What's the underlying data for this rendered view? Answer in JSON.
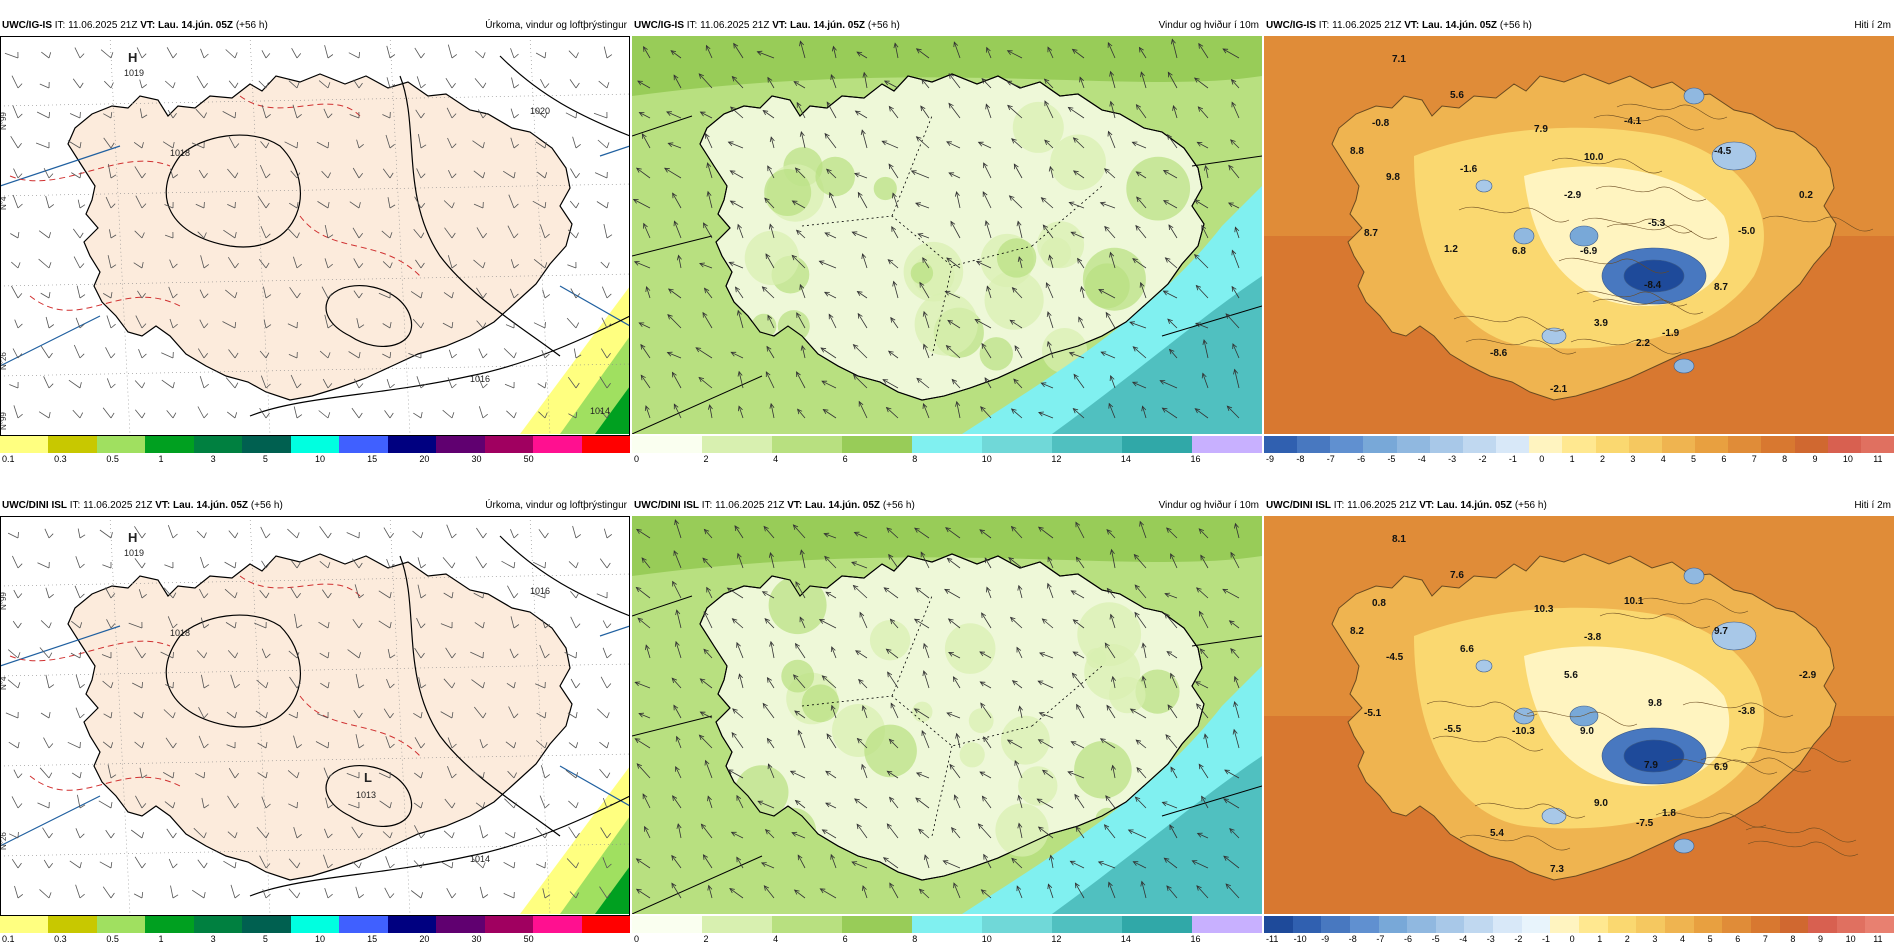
{
  "panels": [
    {
      "model": "UWC/IG-IS",
      "it_label": "IT:",
      "it_value": "11.06.2025 21Z",
      "vt_label": "VT:",
      "vt_value": "Lau. 14.jún. 05Z",
      "lead": "(+56 h)",
      "title": "Úrkoma, vindur og loftþrýstingur",
      "type": "precip",
      "colorbar": [
        "#ffff80",
        "#c8c800",
        "#a0e060",
        "#00a020",
        "#008040",
        "#006050",
        "#00ffe0",
        "#4060ff",
        "#000080",
        "#600070",
        "#a00060",
        "#ff1090",
        "#ff0000"
      ],
      "ticks": [
        "0.1",
        "0.3",
        "0.5",
        "1",
        "3",
        "5",
        "10",
        "15",
        "20",
        "30",
        "50"
      ],
      "labels": [
        {
          "t": "H",
          "type": "pressure-center"
        },
        {
          "t": "1019",
          "type": "isobar-label"
        },
        {
          "t": "1018",
          "type": "isobar-label"
        },
        {
          "t": "1020",
          "type": "isobar-label"
        },
        {
          "t": "1016",
          "type": "isobar-label"
        },
        {
          "t": "1014",
          "type": "isobar-label"
        }
      ],
      "lat_labels": [
        "N°99",
        "N°4",
        "N°26",
        "N°99"
      ]
    },
    {
      "model": "UWC/IG-IS",
      "it_label": "IT:",
      "it_value": "11.06.2025 21Z",
      "vt_label": "VT:",
      "vt_value": "Lau. 14.jún. 05Z",
      "lead": "(+56 h)",
      "title": "Vindur og hviður í 10m",
      "type": "wind",
      "colorbar": [
        "#fafff0",
        "#d8f0b0",
        "#b8e080",
        "#98cc58",
        "#80f0f0",
        "#70d8d8",
        "#50c0c0",
        "#30a8a8",
        "#c8b0ff"
      ],
      "ticks": [
        "0",
        "2",
        "4",
        "6",
        "8",
        "10",
        "12",
        "14",
        "16"
      ]
    },
    {
      "model": "UWC/IG-IS",
      "it_label": "IT:",
      "it_value": "11.06.2025 21Z",
      "vt_label": "VT:",
      "vt_value": "Lau. 14.jún. 05Z",
      "lead": "(+56 h)",
      "title": "Hiti í 2m",
      "type": "temp",
      "colorbar": [
        "#3060b0",
        "#4878c0",
        "#6090d0",
        "#78a8d8",
        "#90b8e0",
        "#a8c8e8",
        "#c0d8f0",
        "#d8e8f8",
        "#fff4c0",
        "#ffe890",
        "#fad870",
        "#f5c860",
        "#efb450",
        "#e8a040",
        "#e08c38",
        "#d87830",
        "#d06830",
        "#d86050",
        "#e07060"
      ],
      "ticks": [
        "-9",
        "-8",
        "-7",
        "-6",
        "-5",
        "-4",
        "-3",
        "-2",
        "-1",
        "0",
        "1",
        "2",
        "3",
        "4",
        "5",
        "6",
        "7",
        "8",
        "9",
        "10",
        "11"
      ],
      "values": [
        "7.1",
        "5.6",
        "-0.8",
        "8.8",
        "7.9",
        "-4.1",
        "10.0",
        "-4.5",
        "-1.6",
        "9.8",
        "-2.9",
        "0.2",
        "-5.3",
        "8.7",
        "-5.0",
        "1.2",
        "6.8",
        "-6.9",
        "-8.4",
        "8.7",
        "3.9",
        "-1.9",
        "2.2",
        "-8.6",
        "-2.1"
      ]
    },
    {
      "model": "UWC/DINI ISL",
      "it_label": "IT:",
      "it_value": "11.06.2025 21Z",
      "vt_label": "VT:",
      "vt_value": "Lau. 14.jún. 05Z",
      "lead": "(+56 h)",
      "title": "Úrkoma, vindur og loftþrýstingur",
      "type": "precip",
      "colorbar": [
        "#ffff80",
        "#c8c800",
        "#a0e060",
        "#00a020",
        "#008040",
        "#006050",
        "#00ffe0",
        "#4060ff",
        "#000080",
        "#600070",
        "#a00060",
        "#ff1090",
        "#ff0000"
      ],
      "ticks": [
        "0.1",
        "0.3",
        "0.5",
        "1",
        "3",
        "5",
        "10",
        "15",
        "20",
        "30",
        "50"
      ],
      "labels": [
        {
          "t": "H",
          "type": "pressure-center"
        },
        {
          "t": "1019",
          "type": "isobar-label"
        },
        {
          "t": "1018",
          "type": "isobar-label"
        },
        {
          "t": "L",
          "type": "pressure-center"
        },
        {
          "t": "1013",
          "type": "isobar-label"
        },
        {
          "t": "1016",
          "type": "isobar-label"
        },
        {
          "t": "1014",
          "type": "isobar-label"
        }
      ],
      "lat_labels": [
        "N°99",
        "N°4",
        "N°26"
      ]
    },
    {
      "model": "UWC/DINI ISL",
      "it_label": "IT:",
      "it_value": "11.06.2025 21Z",
      "vt_label": "VT:",
      "vt_value": "Lau. 14.jún. 05Z",
      "lead": "(+56 h)",
      "title": "Vindur og hviður í 10m",
      "type": "wind",
      "colorbar": [
        "#fafff0",
        "#d8f0b0",
        "#b8e080",
        "#98cc58",
        "#80f0f0",
        "#70d8d8",
        "#50c0c0",
        "#30a8a8",
        "#c8b0ff"
      ],
      "ticks": [
        "0",
        "2",
        "4",
        "6",
        "8",
        "10",
        "12",
        "14",
        "16"
      ]
    },
    {
      "model": "UWC/DINI ISL",
      "it_label": "IT:",
      "it_value": "11.06.2025 21Z",
      "vt_label": "VT:",
      "vt_value": "Lau. 14.jún. 05Z",
      "lead": "(+56 h)",
      "title": "Hiti í 2m",
      "type": "temp",
      "colorbar": [
        "#1e4a9a",
        "#3060b0",
        "#4878c0",
        "#6090d0",
        "#78a8d8",
        "#90b8e0",
        "#a8c8e8",
        "#c0d8f0",
        "#d8e8f8",
        "#e8f4fc",
        "#fff4c0",
        "#ffe890",
        "#fad870",
        "#f5c860",
        "#efb450",
        "#e8a040",
        "#e08c38",
        "#d87830",
        "#d06830",
        "#d86050",
        "#e07060",
        "#e88070"
      ],
      "ticks": [
        "-11",
        "-10",
        "-9",
        "-8",
        "-7",
        "-6",
        "-5",
        "-4",
        "-3",
        "-2",
        "-1",
        "0",
        "1",
        "2",
        "3",
        "4",
        "5",
        "6",
        "7",
        "8",
        "9",
        "10",
        "11"
      ],
      "values": [
        "8.1",
        "7.6",
        "0.8",
        "8.2",
        "10.3",
        "10.1",
        "-3.8",
        "9.7",
        "6.6",
        "-4.5",
        "5.6",
        "-2.9",
        "9.8",
        "-5.1",
        "-3.8",
        "-5.5",
        "-10.3",
        "9.0",
        "7.9",
        "6.9",
        "9.0",
        "1.8",
        "-7.5",
        "5.4",
        "7.3"
      ]
    }
  ]
}
